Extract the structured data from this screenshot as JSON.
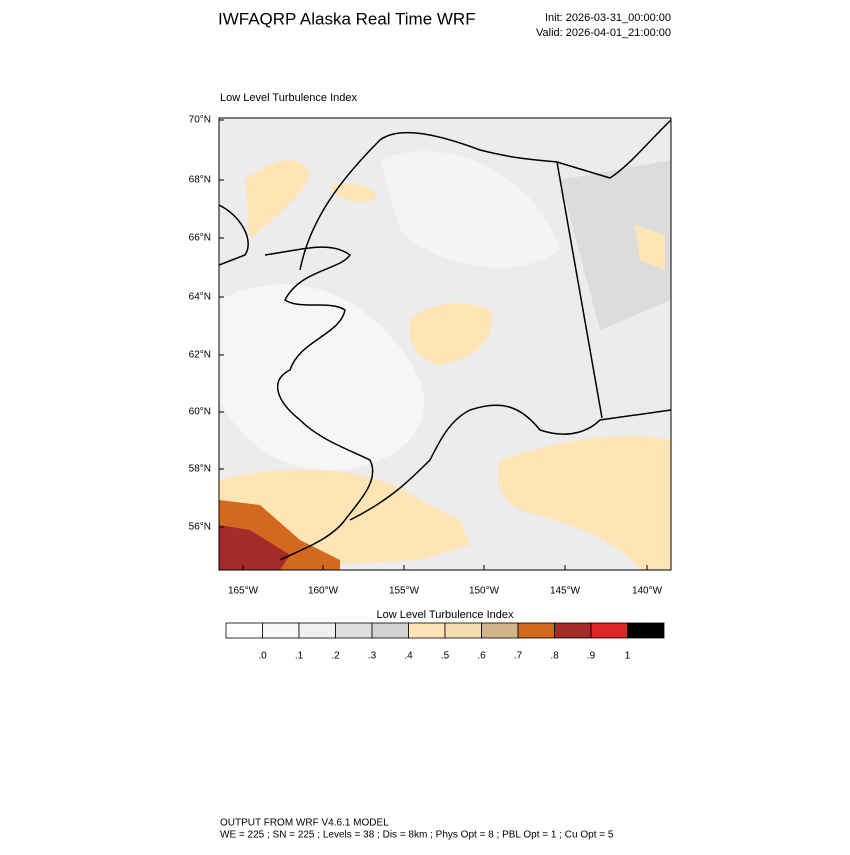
{
  "header": {
    "title": "IWFAQRP Alaska Real Time WRF",
    "init": "Init: 2026-03-31_00:00:00",
    "valid": "Valid: 2026-04-01_21:00:00"
  },
  "map": {
    "title": "Low Level Turbulence Index",
    "lat_labels": [
      "70°N",
      "68°N",
      "66°N",
      "64°N",
      "62°N",
      "60°N",
      "58°N",
      "56°N"
    ],
    "lon_labels": [
      "165°W",
      "160°W",
      "155°W",
      "150°W",
      "145°W",
      "140°W"
    ]
  },
  "colorbar": {
    "title": "Low Level Turbulence Index",
    "labels": [
      ".0",
      ".1",
      ".2",
      ".3",
      ".4",
      ".5",
      ".6",
      ".7",
      ".8",
      ".9",
      "1"
    ],
    "colors": [
      "#ffffff",
      "#f8f8f8",
      "#f0f0f0",
      "#e0e0e0",
      "#d3d3d3",
      "#ffe4b5",
      "#f5deb3",
      "#d2b48c",
      "#d2691e",
      "#a52a2a",
      "#dc2626",
      "#000000"
    ]
  },
  "footer": {
    "lines": [
      "OUTPUT FROM WRF V4.6.1 MODEL",
      "WE = 225 ; SN = 225 ; Levels = 38 ; Dis = 8km ; Phys Opt = 8 ; PBL Opt = 1 ; Cu Opt = 5"
    ]
  }
}
